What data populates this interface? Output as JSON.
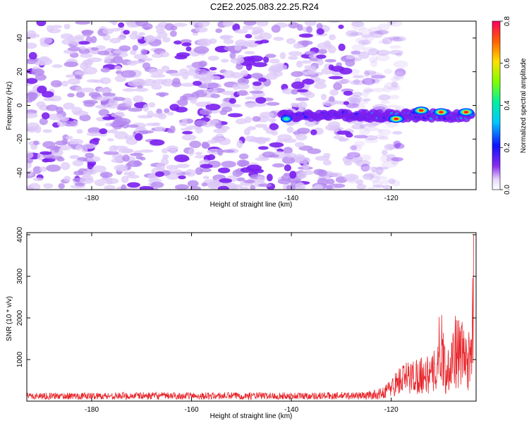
{
  "title": "C2E2.2025.083.22.25.R24",
  "colors": {
    "snr_line": "#e8262b",
    "blob_light": "#dcc8f8",
    "blob_mid": "#b58af0",
    "blob_dark": "#7a1ff0",
    "ridge_low": "#00b4ff",
    "ridge_mid": "#40f0a0",
    "ridge_high": "#ff2020"
  },
  "chart_data": [
    {
      "type": "heatmap",
      "title": "C2E2.2025.083.22.25.R24",
      "xlabel": "Height of straight line (km)",
      "ylabel": "Frequency (Hz)",
      "xlim": [
        -193,
        -103
      ],
      "ylim": [
        -50,
        50
      ],
      "xticks": [
        -180,
        -160,
        -140,
        -120
      ],
      "yticks": [
        -40,
        -20,
        0,
        20,
        40
      ],
      "colorbar": {
        "label": "Normalized spectral amplitude",
        "range": [
          0,
          0.8
        ],
        "ticks": [
          0.0,
          0.2,
          0.4,
          0.6,
          0.8
        ],
        "colormap": "rainbow (violet to red)"
      },
      "signal_ridge": {
        "frequency_hz": -6,
        "x_start_km": -142,
        "x_end_km": -104,
        "peaks": [
          {
            "x_km": -141,
            "y_hz": -8,
            "amplitude": 0.3
          },
          {
            "x_km": -119,
            "y_hz": -8,
            "amplitude": 0.8
          },
          {
            "x_km": -114,
            "y_hz": -3,
            "amplitude": 0.7
          },
          {
            "x_km": -110,
            "y_hz": -4,
            "amplitude": 0.75
          },
          {
            "x_km": -105,
            "y_hz": -4,
            "amplitude": 0.75
          }
        ]
      },
      "noise_extent_km": [
        -193,
        -122
      ],
      "noise_amplitude_range": [
        0.0,
        0.15
      ],
      "grid": false
    },
    {
      "type": "line",
      "title": "",
      "xlabel": "Height of straight line (km)",
      "ylabel": "SNR (10 * v/v)",
      "xlim": [
        -193,
        -103
      ],
      "ylim": [
        0,
        4050
      ],
      "xticks": [
        -180,
        -160,
        -140,
        -120
      ],
      "yticks": [
        1000,
        2000,
        3000,
        4000
      ],
      "series": [
        {
          "name": "",
          "x": [
            -193,
            -180,
            -170,
            -160,
            -150,
            -140,
            -130,
            -125,
            -122,
            -120,
            -118,
            -116,
            -114,
            -112,
            -111,
            -110,
            -109,
            -108,
            -107,
            -106,
            -105,
            -104,
            -103.5
          ],
          "y": [
            150,
            150,
            160,
            155,
            160,
            155,
            165,
            170,
            250,
            500,
            800,
            900,
            1000,
            950,
            1200,
            2300,
            900,
            1700,
            1900,
            1800,
            1600,
            1400,
            4000
          ]
        }
      ],
      "grid": false
    }
  ]
}
